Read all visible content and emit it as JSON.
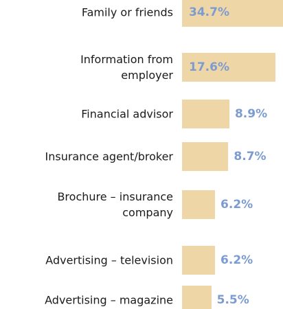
{
  "chart_data": {
    "type": "bar",
    "orientation": "horizontal",
    "color": "#efd6a6",
    "label_color": "#7b9bd1",
    "categories": [
      "Family or friends",
      "Information from employer",
      "Financial advisor",
      "Insurance agent/broker",
      "Brochure – insurance company",
      "Advertising – television",
      "Advertising – magazine"
    ],
    "values": [
      34.7,
      17.6,
      8.9,
      8.7,
      6.2,
      6.2,
      5.5
    ],
    "value_labels": [
      "34.7%",
      "17.6%",
      "8.9%",
      "8.7%",
      "6.2%",
      "6.2%",
      "5.5%"
    ]
  }
}
